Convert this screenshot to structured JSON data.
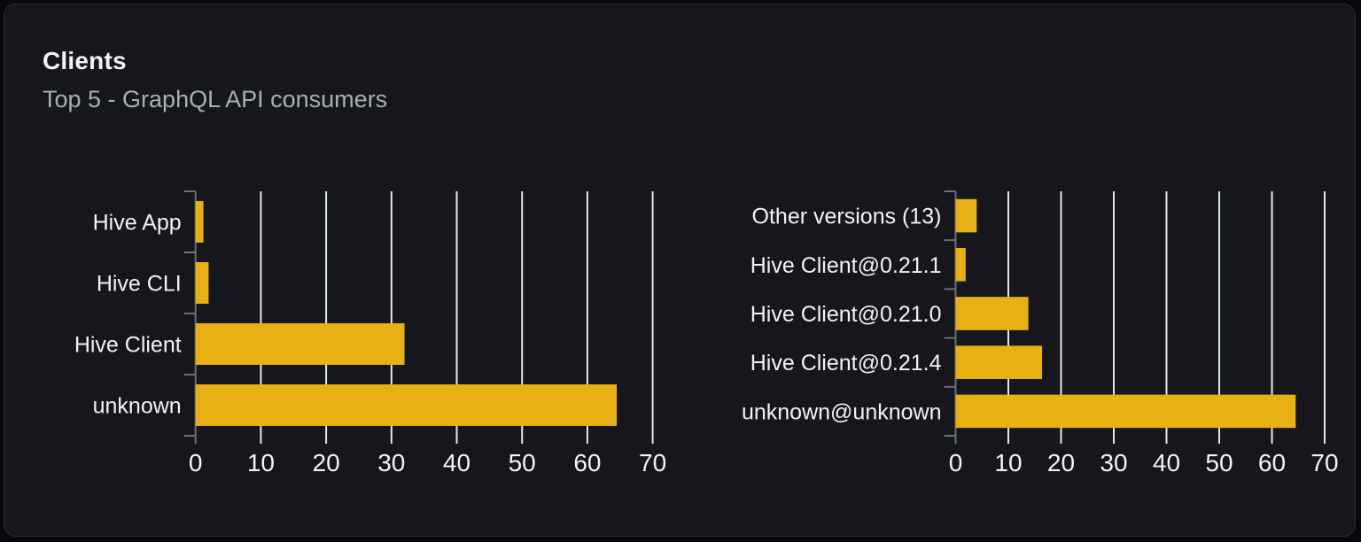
{
  "card": {
    "title": "Clients",
    "subtitle": "Top 5 - GraphQL API consumers"
  },
  "colors": {
    "page_bg": "#09090b",
    "card_bg": "#15171c",
    "card_border": "#2a2d34",
    "text": "#f2f3f5",
    "subtitle": "#a9aeb6",
    "bar": "#e8b012",
    "gridline": "#e2e5ec",
    "axis": "#6c7077"
  },
  "chart_data": [
    {
      "type": "bar",
      "orientation": "horizontal",
      "title": "",
      "xlabel": "",
      "ylabel": "",
      "categories": [
        "Hive App",
        "Hive CLI",
        "Hive Client",
        "unknown"
      ],
      "values": [
        1.2,
        2,
        32,
        64.5
      ],
      "xlim": [
        0,
        70
      ],
      "xticks": [
        0,
        10,
        20,
        30,
        40,
        50,
        60,
        70
      ],
      "grid": true,
      "legend": false
    },
    {
      "type": "bar",
      "orientation": "horizontal",
      "title": "",
      "xlabel": "",
      "ylabel": "",
      "categories": [
        "Other versions (13)",
        "Hive Client@0.21.1",
        "Hive Client@0.21.0",
        "Hive Client@0.21.4",
        "unknown@unknown"
      ],
      "values": [
        4,
        1.9,
        13.8,
        16.4,
        64.5
      ],
      "xlim": [
        0,
        70
      ],
      "xticks": [
        0,
        10,
        20,
        30,
        40,
        50,
        60,
        70
      ],
      "grid": true,
      "legend": false
    }
  ]
}
